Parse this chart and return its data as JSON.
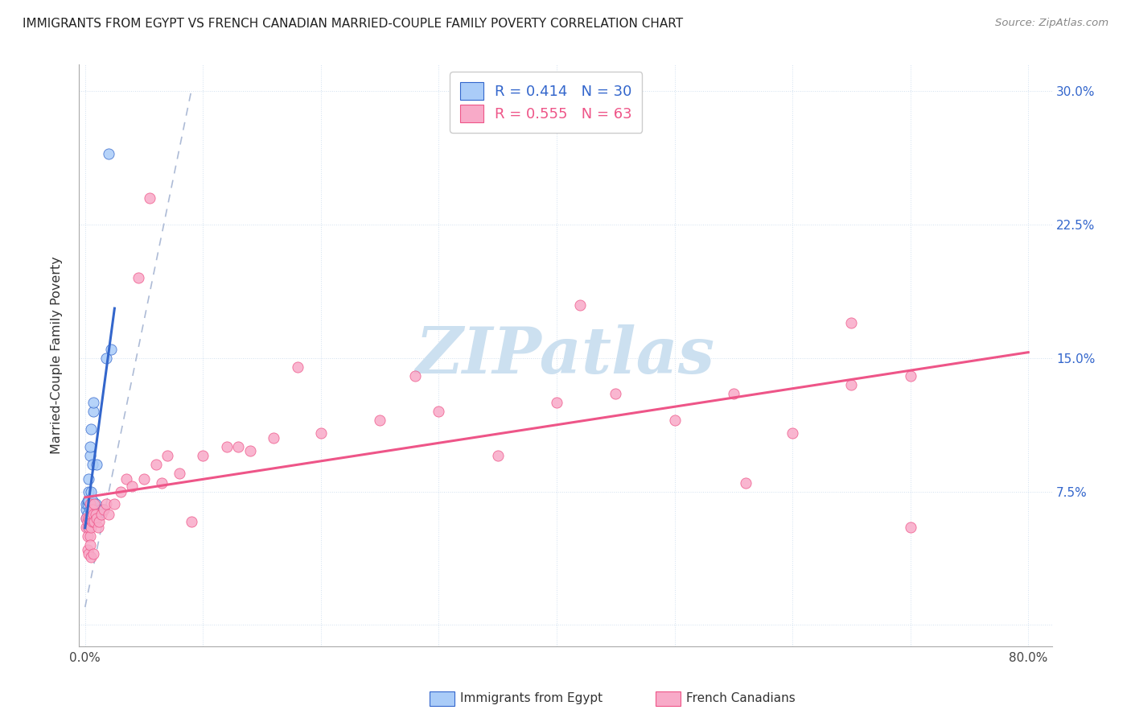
{
  "title": "IMMIGRANTS FROM EGYPT VS FRENCH CANADIAN MARRIED-COUPLE FAMILY POVERTY CORRELATION CHART",
  "source": "Source: ZipAtlas.com",
  "ylabel": "Married-Couple Family Poverty",
  "color_blue": "#aaccf8",
  "color_pink": "#f8aac8",
  "color_blue_line": "#3366cc",
  "color_pink_line": "#ee5588",
  "color_diag": "#99aacc",
  "watermark_color": "#cce0f0",
  "grid_color": "#ccddee",
  "right_tick_color": "#3366cc",
  "egypt_x": [
    0.001,
    0.001,
    0.001,
    0.002,
    0.002,
    0.002,
    0.002,
    0.003,
    0.003,
    0.003,
    0.003,
    0.004,
    0.004,
    0.004,
    0.005,
    0.005,
    0.005,
    0.006,
    0.006,
    0.007,
    0.007,
    0.008,
    0.009,
    0.01,
    0.011,
    0.013,
    0.015,
    0.018,
    0.022,
    0.02
  ],
  "egypt_y": [
    0.06,
    0.065,
    0.068,
    0.062,
    0.055,
    0.068,
    0.07,
    0.075,
    0.082,
    0.07,
    0.06,
    0.095,
    0.1,
    0.065,
    0.11,
    0.068,
    0.075,
    0.09,
    0.07,
    0.12,
    0.125,
    0.06,
    0.068,
    0.09,
    0.062,
    0.065,
    0.065,
    0.15,
    0.155,
    0.265
  ],
  "french_x": [
    0.001,
    0.001,
    0.002,
    0.002,
    0.002,
    0.003,
    0.003,
    0.003,
    0.004,
    0.004,
    0.004,
    0.004,
    0.005,
    0.005,
    0.005,
    0.006,
    0.006,
    0.007,
    0.007,
    0.008,
    0.008,
    0.009,
    0.01,
    0.011,
    0.012,
    0.014,
    0.016,
    0.018,
    0.02,
    0.025,
    0.03,
    0.035,
    0.04,
    0.05,
    0.06,
    0.07,
    0.08,
    0.1,
    0.12,
    0.14,
    0.16,
    0.2,
    0.25,
    0.3,
    0.35,
    0.4,
    0.45,
    0.5,
    0.55,
    0.6,
    0.65,
    0.7,
    0.045,
    0.055,
    0.065,
    0.09,
    0.13,
    0.18,
    0.28,
    0.42,
    0.56,
    0.65,
    0.7
  ],
  "french_y": [
    0.055,
    0.06,
    0.05,
    0.058,
    0.042,
    0.04,
    0.055,
    0.06,
    0.05,
    0.06,
    0.068,
    0.045,
    0.055,
    0.062,
    0.038,
    0.058,
    0.065,
    0.062,
    0.04,
    0.058,
    0.068,
    0.062,
    0.06,
    0.055,
    0.058,
    0.062,
    0.065,
    0.068,
    0.062,
    0.068,
    0.075,
    0.082,
    0.078,
    0.082,
    0.09,
    0.095,
    0.085,
    0.095,
    0.1,
    0.098,
    0.105,
    0.108,
    0.115,
    0.12,
    0.095,
    0.125,
    0.13,
    0.115,
    0.13,
    0.108,
    0.135,
    0.14,
    0.195,
    0.24,
    0.08,
    0.058,
    0.1,
    0.145,
    0.14,
    0.18,
    0.08,
    0.17,
    0.055
  ],
  "xlim": [
    -0.005,
    0.82
  ],
  "ylim": [
    -0.012,
    0.315
  ],
  "xtick_pos": [
    0.0,
    0.1,
    0.2,
    0.3,
    0.4,
    0.5,
    0.6,
    0.7,
    0.8
  ],
  "xtick_labels": [
    "0.0%",
    "",
    "",
    "",
    "",
    "",
    "",
    "",
    "80.0%"
  ],
  "ytick_pos": [
    0.0,
    0.075,
    0.15,
    0.225,
    0.3
  ],
  "ytick_labels_right": [
    "",
    "7.5%",
    "15.0%",
    "22.5%",
    "30.0%"
  ]
}
